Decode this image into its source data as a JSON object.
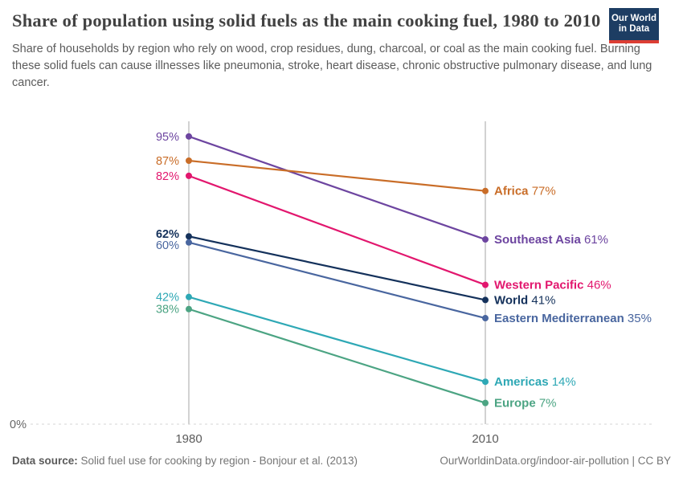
{
  "header": {
    "title": "Share of population using solid fuels as the main cooking fuel, 1980 to 2010",
    "subtitle": "Share of households by region who rely on wood, crop residues, dung, charcoal, or coal as the main cooking fuel. Burning these solid fuels can cause illnesses like pneumonia, stroke, heart disease, chronic obstructive pulmonary disease, and lung cancer.",
    "logo": {
      "line1": "Our World",
      "line2": "in Data",
      "bg": "#1d3d63",
      "stripe": "#dc3e34"
    }
  },
  "chart_data": {
    "type": "line",
    "variant": "slopechart",
    "title": "Share of population using solid fuels as the main cooking fuel, 1980 to 2010",
    "x": [
      1980,
      2010
    ],
    "x_labels": [
      "1980",
      "2010"
    ],
    "ylim": [
      0,
      100
    ],
    "y_zero_label": "0%",
    "grid": "vertical-gridlines-at-years, dashed-zero-baseline",
    "legend_position": "labels-at-line-ends",
    "series": [
      {
        "name": "Southeast Asia",
        "values": [
          95,
          61
        ],
        "color": "#6d45a0",
        "bold": false
      },
      {
        "name": "Africa",
        "values": [
          87,
          77
        ],
        "color": "#c96d28",
        "bold": false
      },
      {
        "name": "Western Pacific",
        "values": [
          82,
          46
        ],
        "color": "#e2176e",
        "bold": false
      },
      {
        "name": "World",
        "values": [
          62,
          41
        ],
        "color": "#14315b",
        "bold": true
      },
      {
        "name": "Eastern Mediterranean",
        "values": [
          60,
          35
        ],
        "color": "#49669f",
        "bold": false
      },
      {
        "name": "Americas",
        "values": [
          42,
          14
        ],
        "color": "#2ea8b5",
        "bold": false
      },
      {
        "name": "Europe",
        "values": [
          38,
          7
        ],
        "color": "#4ca483",
        "bold": false
      }
    ]
  },
  "footer": {
    "source_label": "Data source:",
    "source_text": " Solid fuel use for cooking by region - Bonjour et al. (2013)",
    "link": "OurWorldinData.org/indoor-air-pollution | CC BY"
  }
}
